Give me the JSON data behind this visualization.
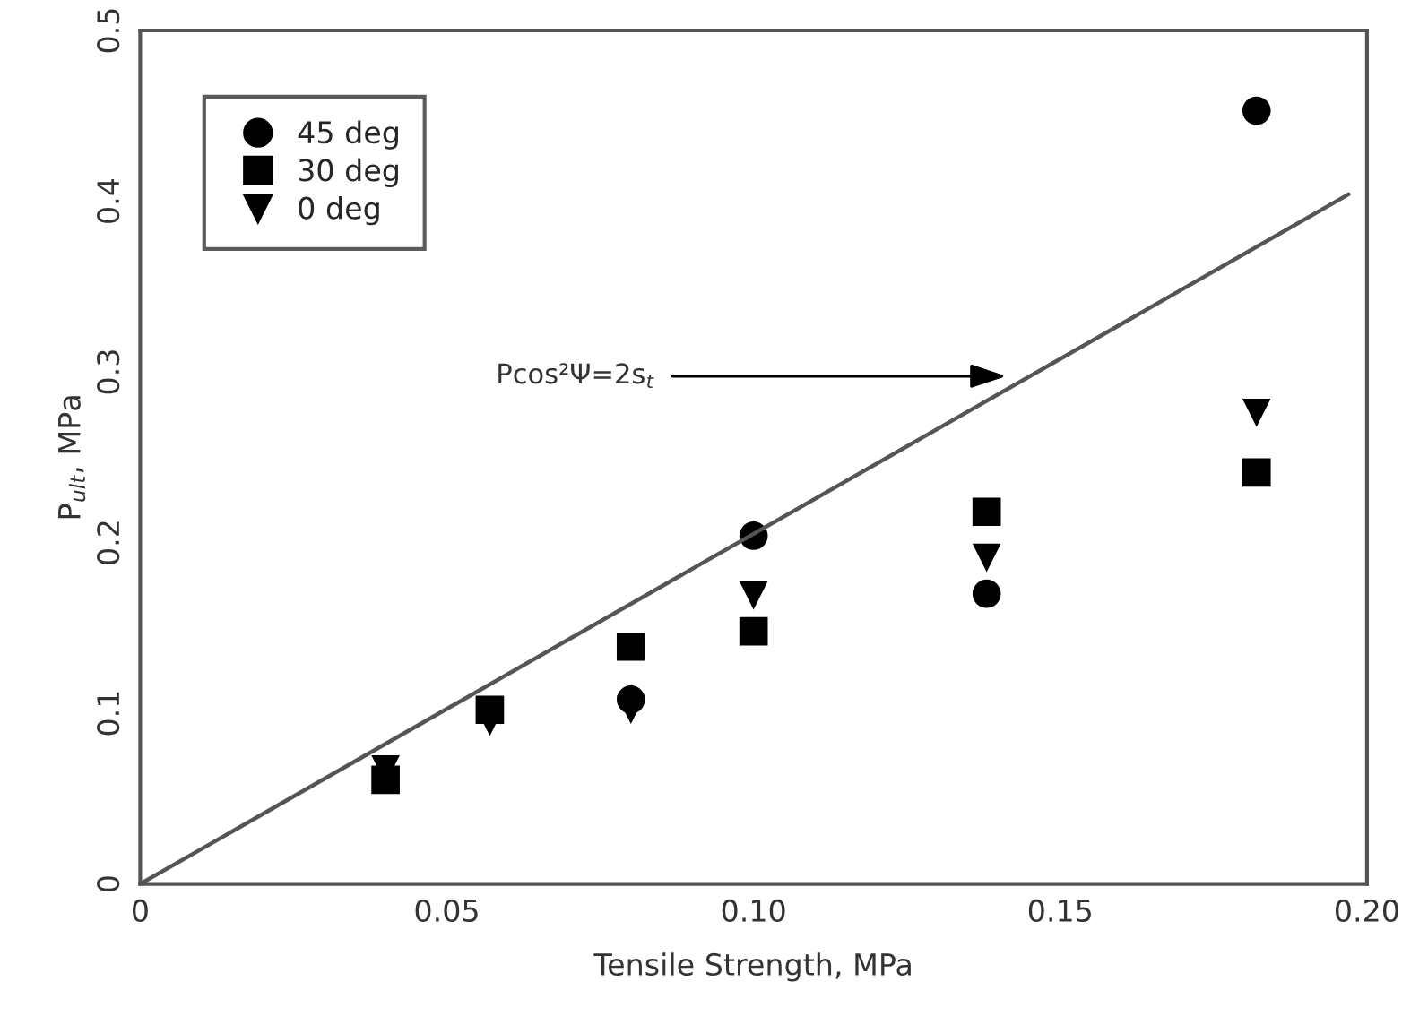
{
  "chart_data": {
    "type": "scatter",
    "xlabel": "Tensile Strength, MPa",
    "ylabel": "P$_{ult}$, MPa",
    "x": [
      0.04,
      0.057,
      0.08,
      0.1,
      0.138,
      0.182
    ],
    "series": [
      {
        "name": "45 deg",
        "color": "#000000",
        "marker": "circle",
        "values": [
          null,
          null,
          0.108,
          0.204,
          0.17,
          0.453
        ]
      },
      {
        "name": "30 deg",
        "color": "#000000",
        "marker": "square",
        "values": [
          0.061,
          0.102,
          0.139,
          0.148,
          0.218,
          0.241
        ]
      },
      {
        "name": "0 deg",
        "color": "#000000",
        "marker": "triangle",
        "values": [
          0.067,
          0.095,
          0.102,
          0.169,
          0.191,
          0.276
        ]
      },
      {
        "type": "line",
        "color": "#555555",
        "marker": "none",
        "x": [
          0,
          0.197
        ],
        "values": [
          0,
          0.404
        ]
      }
    ],
    "annotations": [
      "Pcos²Ψ=2s$_{t}$"
    ],
    "xlim": [
      0,
      0.2
    ],
    "ylim": [
      0,
      0.5
    ],
    "xticks": [
      0,
      0.05,
      {
        "value": 0.1,
        "label": "0.10"
      },
      0.15,
      {
        "value": 0.2,
        "label": "0.20"
      }
    ],
    "yticks": [
      0,
      0.1,
      0.2,
      0.3,
      0.4,
      0.5
    ],
    "legend": "top left",
    "grid": false
  }
}
